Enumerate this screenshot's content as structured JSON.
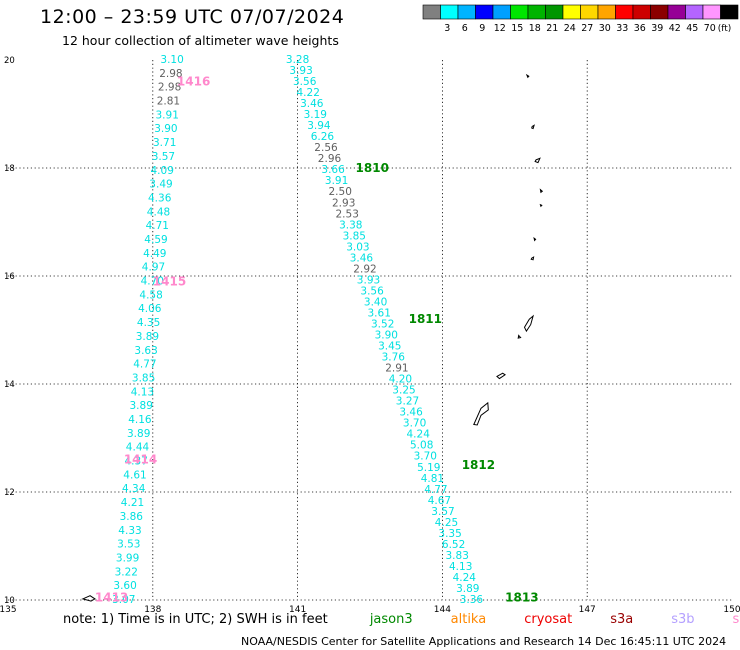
{
  "header": {
    "title": "12:00 – 23:59 UTC 07/07/2024",
    "subtitle": "12 hour collection of altimeter wave heights"
  },
  "legend": {
    "colors": [
      "#808080",
      "#00ffff",
      "#00b4ff",
      "#0000ff",
      "#00a0ff",
      "#00e600",
      "#00b400",
      "#009600",
      "#ffff00",
      "#ffd700",
      "#ffa500",
      "#ff0000",
      "#cd0000",
      "#8b0000",
      "#960096",
      "#b464ff",
      "#ff96ff",
      "#000000"
    ],
    "labels": [
      "3",
      "6",
      "9",
      "12",
      "15",
      "18",
      "21",
      "24",
      "27",
      "30",
      "33",
      "36",
      "39",
      "42",
      "45",
      "70"
    ],
    "unit": "(ft)"
  },
  "map": {
    "x_ticks": [
      "135",
      "138",
      "141",
      "144",
      "147",
      "150"
    ],
    "y_ticks": [
      "10",
      "12",
      "14",
      "16",
      "18",
      "20"
    ],
    "tracks": [
      {
        "pass": "1413",
        "satellite": "swot",
        "color": "#00e0e0",
        "label_color": "#ff88cc",
        "start": [
          137.4,
          10.0
        ],
        "end": [
          138.4,
          20.0
        ],
        "values": [
          "3.07",
          "3.60",
          "3.22",
          "3.99",
          "3.53",
          "4.33",
          "3.86",
          "4.21",
          "4.34",
          "4.61",
          "4.37",
          "4.44",
          "3.89",
          "4.16",
          "3.89",
          "4.13",
          "3.85",
          "4.77",
          "3.63",
          "3.89",
          "4.35",
          "4.06",
          "4.58",
          "4.70",
          "4.97",
          "4.49",
          "4.59",
          "4.71",
          "4.48",
          "4.36",
          "3.49",
          "4.09",
          "3.57",
          "3.71",
          "3.90",
          "3.91",
          "2.81",
          "2.98",
          "2.98",
          "3.10"
        ],
        "gray": [
          36,
          37,
          38
        ]
      },
      {
        "pass": "1810",
        "satellite": "jason3",
        "color": "#00e0e0",
        "label_color": "#008800",
        "start": [
          141.0,
          20.0
        ],
        "end": [
          144.6,
          10.0
        ],
        "values": [
          "3.28",
          "3.93",
          "3.56",
          "4.22",
          "3.46",
          "3.19",
          "3.94",
          "6.26",
          "2.56",
          "2.96",
          "3.66",
          "3.91",
          "2.50",
          "2.93",
          "2.53",
          "3.38",
          "3.85",
          "3.03",
          "3.46",
          "2.92",
          "3.93",
          "3.56",
          "3.40",
          "3.61",
          "3.52",
          "3.90",
          "3.45",
          "3.76",
          "2.91",
          "4.20",
          "3.25",
          "3.27",
          "3.46",
          "3.70",
          "4.24",
          "5.08",
          "3.70",
          "5.19",
          "4.81",
          "4.77",
          "4.67",
          "3.57",
          "4.25",
          "3.35",
          "6.52",
          "3.83",
          "4.13",
          "4.24",
          "3.89",
          "3.36"
        ],
        "gray": [
          8,
          9,
          12,
          13,
          14,
          19,
          28
        ]
      }
    ],
    "pass_labels": [
      {
        "text": "1416",
        "lon": 138.5,
        "lat": 19.6,
        "color": "#ff88cc"
      },
      {
        "text": "1415",
        "lon": 138.0,
        "lat": 15.9,
        "color": "#ff88cc"
      },
      {
        "text": "1414",
        "lon": 137.4,
        "lat": 12.6,
        "color": "#ff88cc"
      },
      {
        "text": "1413",
        "lon": 136.8,
        "lat": 10.05,
        "color": "#ff88cc"
      },
      {
        "text": "1810",
        "lon": 142.2,
        "lat": 18.0,
        "color": "#008800"
      },
      {
        "text": "1811",
        "lon": 143.3,
        "lat": 15.2,
        "color": "#008800"
      },
      {
        "text": "1812",
        "lon": 144.4,
        "lat": 12.5,
        "color": "#008800"
      },
      {
        "text": "1813",
        "lon": 145.3,
        "lat": 10.05,
        "color": "#008800"
      }
    ]
  },
  "footer": {
    "note_prefix": "note:  1) Time is in UTC; 2) SWH is in feet",
    "satellites": [
      {
        "name": "jason3",
        "color": "#008800"
      },
      {
        "name": "altika",
        "color": "#ff8800"
      },
      {
        "name": "cryosat",
        "color": "#ee0000"
      },
      {
        "name": "s3a",
        "color": "#990000"
      },
      {
        "name": "s3b",
        "color": "#b4a0ff"
      },
      {
        "name": "swot",
        "color": "#ff88cc"
      }
    ],
    "credit": "NOAA/NESDIS Center for Satellite Applications and Research    14 Dec 16:45:11 UTC 2024"
  }
}
